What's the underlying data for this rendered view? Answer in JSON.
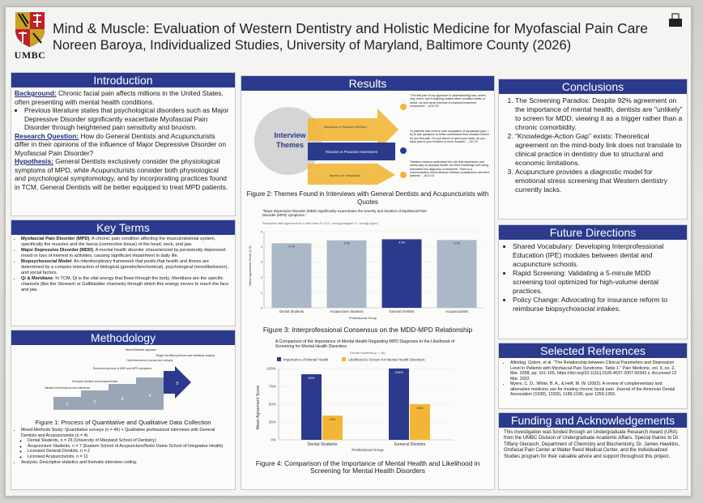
{
  "header": {
    "title": "Mind & Muscle: Evaluation of Western Dentistry and Holistic Medicine for Myofascial Pain Care",
    "subtitle": "Noreen Baroya, Individualized Studies, University of Maryland, Baltimore County (2026)",
    "logo_text": "UMBC"
  },
  "introduction": {
    "heading": "Introduction",
    "background_label": "Background:",
    "background_text": " Chronic facial pain affects millions in the United States, often presenting with mental health conditions.",
    "bullet": "Previous literature states that psychological disorders such as Major Depressive Disorder significantly exacerbate Myofascial Pain Disorder through heightened pain sensitivity and bruxism.",
    "question_label": "Research Question:",
    "question_text": " How do General Dentists and Acupuncturists differ in their opinions of the influence of Major Depressive Disorder on Myofascial Pain Disorder?",
    "hypothesis_label": "Hypothesis:",
    "hypothesis_text": " General Dentists exclusively consider the physiological symptoms of MPD, while Acupuncturists consider both physiological and psychological symptomology, and by incorporating practices found in TCM, General Dentists will be better equipped to treat MPD patients."
  },
  "key_terms": {
    "heading": "Key Terms",
    "items": [
      {
        "term": "Myofascial Pain Disorder (MPD)",
        "def": ": A chronic pain condition affecting the musculoskeletal system, specifically the muscles and the fascia (connective tissue) of the head, neck, and jaw."
      },
      {
        "term": "Major Depressive Disorder (MDD)",
        "def": ": A mental health disorder characterized by persistently depressed mood or loss of interest in activities, causing significant impairment in daily life."
      },
      {
        "term": "Biopsychosocial Model",
        "def": ": An interdisciplinary framework that posits that health and illness are determined by a complex interaction of biological (genetic/biochemical), psychological (mood/behavior), and social factors."
      },
      {
        "term": "Qi & Meridians",
        "def": ": In TCM, Qi is the vital energy that flows through the body; Meridians are the specific channels (like the Stomach or Gallbladder channels) through which this energy moves to reach the face and jaw."
      }
    ]
  },
  "methodology": {
    "heading": "Methodology",
    "steps": [
      "Mixed-Methods approach",
      "Initiated conversations and interviews",
      "Surveyed dentists and acupuncturists",
      "Recorded opinions of MDD and MPD symptoms",
      "Held interviews in person and virtually",
      "Began identifying themes and statistical analysis"
    ],
    "figure_caption": "Figure 1: Process of Quantitative and Qualitative Data Collection",
    "bullets": [
      "Mixed-Methods Study: Quantitative surveys (n = 46) + Qualitative professional interviews with General Dentists and Acupuncturists (n = 4).",
      "Analysis: Descriptive statistics and thematic interview coding."
    ],
    "sub_bullets": [
      "Dental Students, n = 26 (University of Maryland School of Dentistry)",
      "Acupuncture Students, n = 7 (Eastern School of Acupuncture/Notre Dame School of Integrative Health)",
      "Licensed General Dentists, n = 2",
      "Licensed Acupuncturists, n = 11"
    ]
  },
  "results": {
    "heading": "Results",
    "themes_label": "Interview Themes",
    "themes": [
      "Variations in Reliance Method",
      "Reactive vs Proactive Assessment",
      "Barriers to Integration"
    ],
    "quotes": [
      "\"The first part of my approach is understanding how, where, why, when, and if anything makes either condition better or worse, as well as an exercise in physical movement component.\" - ACU 02",
      "\"In patients that come in with complaints of myofascial pain, I try to ask questions to better understand their situation before do you find pain. Do you clench or grind your teeth, do you have pain in your temples or neck muscles.\" - GD 04",
      "\"Western doctors understand the role that depression and stress play on physical health, but their knowledge isn't being translated into diagnosis or treatment. There is a communication block between Western practitioners and their patients.\" - ACU 01"
    ],
    "figure2_caption": "Figure 2: Themes Found in Interviews with General Dentists and Acupuncturists with Quotes",
    "figure3_caption": "Figure 3: Interprofessional Consensus on the MDD-MPD Relationship",
    "figure4_caption": "Figure 4: Comparison of the Importance of Mental Health and Likelihood in Screening for Mental Health Disorders"
  },
  "chart_data": [
    {
      "type": "bar",
      "title": "\"Major Depressive Disorder (MDD) significantly exacerbates the severity and duration of Myofascial Pain Disorder (MPD) symptoms.\"",
      "subtitle": "Participants rated agreement on a Likert scale of 1-5 (1 = strongly disagree, 5 = strongly agree)",
      "categories": [
        "Dental Students",
        "Acupuncture Students",
        "General Dentists",
        "Acupuncturists"
      ],
      "values": [
        4.24,
        4.43,
        4.5,
        4.45
      ],
      "value_labels": [
        "4.24",
        "4.43",
        "4.50",
        "4.45"
      ],
      "colors": [
        "#aab8c8",
        "#aab8c8",
        "#2b3a8c",
        "#aab8c8"
      ],
      "xlabel": "Professional Group",
      "ylabel": "Mean Agreement Score (1-5)",
      "ylim": [
        0,
        5
      ],
      "yticks": [
        "0",
        "1",
        "2",
        "3",
        "4",
        "5"
      ]
    },
    {
      "type": "bar",
      "title": "A Comparison of the Importance of Mental Health Regarding MPD Diagnosis to the Likelihood of Screening for Mental Health Disorders",
      "subtitle": "Dental Students (n = 26)",
      "categories": [
        "Dental Students",
        "General Dentists"
      ],
      "series": [
        {
          "name": "Importance of Mental Health",
          "values": [
            92,
            100
          ],
          "color": "#2b3a8c",
          "labels": [
            "92%",
            "100%"
          ]
        },
        {
          "name": "Likelihood to Screen for Mental Health Disorders",
          "values": [
            34,
            50
          ],
          "color": "#f2b636",
          "labels": [
            "34%",
            "50%"
          ]
        }
      ],
      "xlabel": "Professional Group",
      "ylabel": "Mean Agreement Score",
      "ylim": [
        0,
        100
      ],
      "yticks": [
        "0%",
        "25%",
        "50%",
        "75%",
        "100%"
      ],
      "legend": "top"
    }
  ],
  "conclusions": {
    "heading": "Conclusions",
    "items": [
      "The Screening Paradox: Despite 92% agreement on the importance of mental health, dentists are \"unlikely\" to screen for MDD, viewing it as a trigger rather than a chronic comorbidity.",
      "\"Knowledge-Action Gap\" exists: Theoretical agreement on the mind-body link does not translate to clinical practice in dentistry due to structural and economic limitations.",
      "Acupuncture provides a diagnostic model for emotional stress screening that Western dentistry currently lacks."
    ]
  },
  "future": {
    "heading": "Future Directions",
    "items": [
      "Shared Vocabulary: Developing Interprofessional Education (IPE) modules between dental and acupuncture schools.",
      "Rapid Screening: Validating a 5-minute MDD screening tool optimized for high-volume dental practices.",
      "Policy Change: Advocating for insurance reform to reimburse biopsychosocial intakes."
    ]
  },
  "references": {
    "heading": "Selected References",
    "items": [
      "Altindag, Ozlem, et al. \"The Relationship between Clinical Parameters and Depression Level in Patients with Myofascial Pain Syndrome. Table 1.\" Pain Medicine, vol. 9, no. 2, Mar. 2008, pp. 161-165, https://doi.org/10.1111/j.1526-4637.2007.00342.x. Accessed 13 Mar. 2022.",
      "Myers, C. D., White, B. A., & Heft, M. W. (2002). A review of complementary and alternative medicine use for treating chronic facial pain. Journal of the American Dental Association (1939), 133(9), 1189-1196; quiz 1259-1260."
    ]
  },
  "funding": {
    "heading": "Funding and Acknowledgements",
    "text": "This investigation was funded through an Undergraduate Research Award (URA) from the UMBC Division of Undergraduate Academic Affairs. Special thanks to Dr. Tiffany Gierasch, Department of Chemistry and Biochemistry, Dr. James Hawkins, Orofacial Pain Center at Walter Reed Medical Center, and the Individualized Studies program for their valuable advice and support throughout this project."
  }
}
